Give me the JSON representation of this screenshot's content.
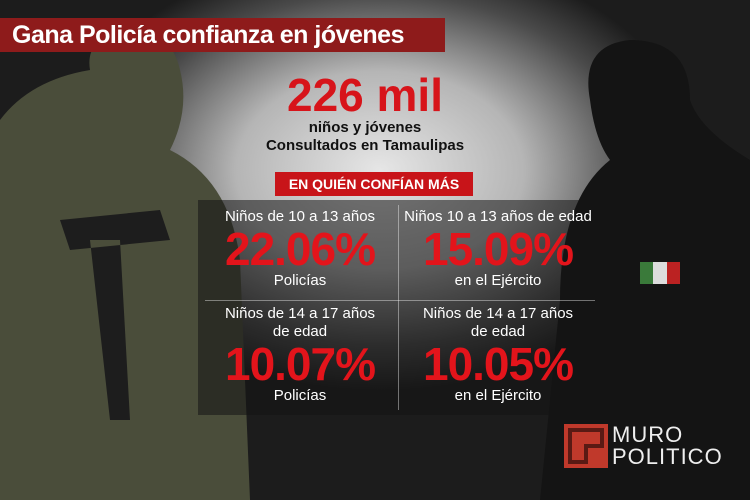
{
  "header": {
    "title": "Gana Policía confianza en jóvenes"
  },
  "headline": {
    "value": "226 mil",
    "lines": [
      "niños y jóvenes",
      "Consultados en Tamaulipas"
    ]
  },
  "section": {
    "title": "EN QUIÉN CONFÍAN MÁS"
  },
  "cells": [
    {
      "label": [
        "Niños de 10 a 13 años"
      ],
      "percent": "22.06%",
      "group": "Policías"
    },
    {
      "label": [
        "Niños 10 a 13 años de edad"
      ],
      "percent": "15.09%",
      "group": "en el Ejército"
    },
    {
      "label": [
        "Niños de 14 a 17 años",
        "de edad"
      ],
      "percent": "10.07%",
      "group": "Policías"
    },
    {
      "label": [
        "Niños de 14 a 17 años",
        "de edad"
      ],
      "percent": "10.05%",
      "group": "en el Ejército"
    }
  ],
  "logo": {
    "line1": "MURO",
    "line2": "POLITICO"
  }
}
